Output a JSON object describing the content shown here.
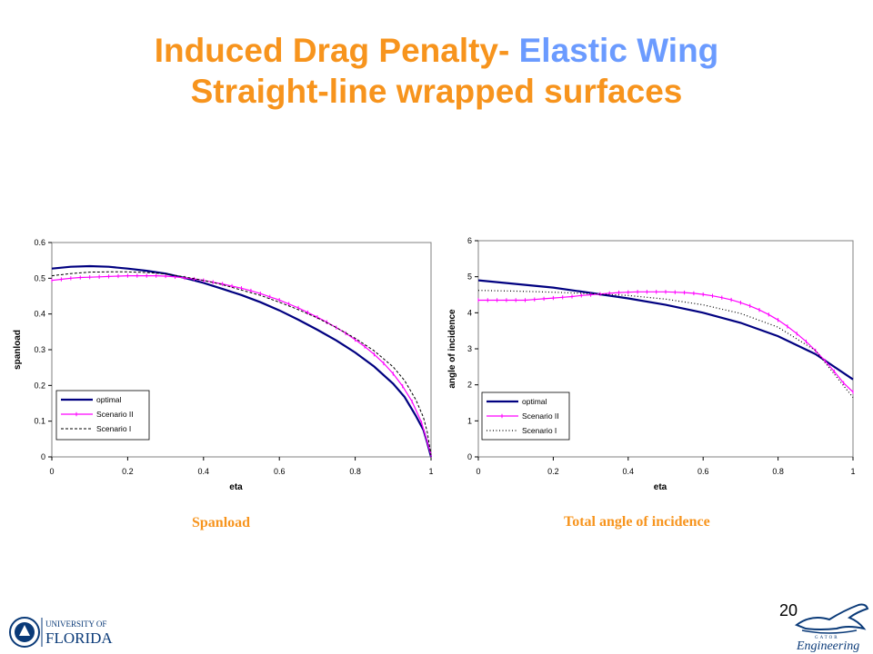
{
  "slide": {
    "title_part1": "Induced Drag Penalty- ",
    "title_part2": "Elastic Wing",
    "title_line2": "Straight-line wrapped surfaces",
    "caption_left": "Spanload",
    "caption_right": "Total angle of incidence",
    "page_number": "20",
    "logo_left_line1": "UNIVERSITY OF",
    "logo_left_line2": "FLORIDA",
    "logo_right_text": "Engineering",
    "logo_right_small": "GATOR",
    "colors": {
      "title": "#f7941d",
      "title_accent": "#6b9bff",
      "optimal": "#000080",
      "scenario2": "#ff00ff",
      "scenario1": "#000000"
    }
  },
  "chart_data": [
    {
      "type": "line",
      "title": "",
      "xlabel": "eta",
      "ylabel": "spanload",
      "xlim": [
        0,
        1
      ],
      "ylim": [
        0,
        0.6
      ],
      "xticks": [
        "0",
        "0.2",
        "0.4",
        "0.6",
        "0.8",
        "1"
      ],
      "yticks": [
        "0",
        "0.1",
        "0.2",
        "0.3",
        "0.4",
        "0.5",
        "0.6"
      ],
      "legend": "lower-left",
      "series": [
        {
          "name": "optimal",
          "style": "solid",
          "color": "#000080",
          "x": [
            0,
            0.05,
            0.1,
            0.15,
            0.2,
            0.25,
            0.3,
            0.35,
            0.4,
            0.45,
            0.5,
            0.55,
            0.6,
            0.65,
            0.7,
            0.75,
            0.8,
            0.85,
            0.9,
            0.93,
            0.96,
            0.98,
            0.99,
            1.0
          ],
          "y": [
            0.527,
            0.532,
            0.534,
            0.532,
            0.527,
            0.521,
            0.513,
            0.501,
            0.487,
            0.47,
            0.453,
            0.433,
            0.41,
            0.384,
            0.356,
            0.326,
            0.292,
            0.253,
            0.205,
            0.168,
            0.115,
            0.075,
            0.04,
            0.0
          ]
        },
        {
          "name": "Scenario II",
          "style": "solid-markers",
          "color": "#ff00ff",
          "x": [
            0,
            0.025,
            0.05,
            0.075,
            0.1,
            0.125,
            0.15,
            0.175,
            0.2,
            0.225,
            0.25,
            0.275,
            0.3,
            0.325,
            0.35,
            0.375,
            0.4,
            0.425,
            0.45,
            0.475,
            0.5,
            0.525,
            0.55,
            0.575,
            0.6,
            0.625,
            0.65,
            0.675,
            0.7,
            0.725,
            0.75,
            0.775,
            0.8,
            0.825,
            0.85,
            0.875,
            0.9,
            0.925,
            0.95,
            0.975,
            1.0
          ],
          "y": [
            0.494,
            0.497,
            0.5,
            0.502,
            0.503,
            0.504,
            0.505,
            0.506,
            0.507,
            0.507,
            0.507,
            0.507,
            0.506,
            0.504,
            0.501,
            0.498,
            0.494,
            0.489,
            0.484,
            0.478,
            0.472,
            0.465,
            0.457,
            0.448,
            0.439,
            0.428,
            0.417,
            0.404,
            0.391,
            0.377,
            0.362,
            0.346,
            0.328,
            0.309,
            0.287,
            0.262,
            0.233,
            0.198,
            0.155,
            0.096,
            0.005
          ]
        },
        {
          "name": "Scenario I",
          "style": "dashed",
          "color": "#000000",
          "x": [
            0,
            0.05,
            0.1,
            0.15,
            0.2,
            0.25,
            0.3,
            0.35,
            0.4,
            0.45,
            0.5,
            0.55,
            0.6,
            0.65,
            0.7,
            0.75,
            0.8,
            0.85,
            0.9,
            0.93,
            0.96,
            0.98,
            0.99,
            1.0
          ],
          "y": [
            0.507,
            0.513,
            0.517,
            0.518,
            0.518,
            0.516,
            0.512,
            0.504,
            0.494,
            0.482,
            0.467,
            0.452,
            0.433,
            0.412,
            0.389,
            0.362,
            0.332,
            0.297,
            0.252,
            0.214,
            0.16,
            0.11,
            0.07,
            0.005
          ]
        }
      ]
    },
    {
      "type": "line",
      "title": "",
      "xlabel": "eta",
      "ylabel": "angle of incidence",
      "xlim": [
        0,
        1
      ],
      "ylim": [
        0,
        6
      ],
      "xticks": [
        "0",
        "0.2",
        "0.4",
        "0.6",
        "0.8",
        "1"
      ],
      "yticks": [
        "0",
        "1",
        "2",
        "3",
        "4",
        "5",
        "6"
      ],
      "legend": "lower-left",
      "series": [
        {
          "name": "optimal",
          "style": "solid",
          "color": "#000080",
          "x": [
            0,
            0.1,
            0.2,
            0.3,
            0.4,
            0.5,
            0.6,
            0.7,
            0.8,
            0.9,
            1.0
          ],
          "y": [
            4.9,
            4.8,
            4.7,
            4.55,
            4.4,
            4.22,
            4.0,
            3.72,
            3.35,
            2.85,
            2.15
          ]
        },
        {
          "name": "Scenario II",
          "style": "solid-markers",
          "color": "#ff00ff",
          "x": [
            0,
            0.025,
            0.05,
            0.075,
            0.1,
            0.125,
            0.15,
            0.175,
            0.2,
            0.225,
            0.25,
            0.275,
            0.3,
            0.325,
            0.35,
            0.375,
            0.4,
            0.425,
            0.45,
            0.475,
            0.5,
            0.525,
            0.55,
            0.575,
            0.6,
            0.625,
            0.65,
            0.675,
            0.7,
            0.725,
            0.75,
            0.775,
            0.8,
            0.825,
            0.85,
            0.875,
            0.9,
            0.925,
            0.95,
            0.975,
            1.0
          ],
          "y": [
            4.35,
            4.35,
            4.35,
            4.35,
            4.35,
            4.35,
            4.37,
            4.39,
            4.41,
            4.43,
            4.45,
            4.48,
            4.5,
            4.52,
            4.54,
            4.56,
            4.57,
            4.58,
            4.58,
            4.58,
            4.58,
            4.57,
            4.56,
            4.54,
            4.51,
            4.47,
            4.42,
            4.36,
            4.28,
            4.19,
            4.08,
            3.95,
            3.8,
            3.62,
            3.42,
            3.2,
            2.95,
            2.67,
            2.37,
            2.05,
            1.8
          ]
        },
        {
          "name": "Scenario I",
          "style": "dotted",
          "color": "#000000",
          "x": [
            0,
            0.1,
            0.2,
            0.3,
            0.4,
            0.5,
            0.6,
            0.7,
            0.8,
            0.9,
            1.0
          ],
          "y": [
            4.62,
            4.6,
            4.57,
            4.53,
            4.48,
            4.38,
            4.22,
            3.98,
            3.6,
            2.95,
            1.65
          ]
        }
      ]
    }
  ]
}
